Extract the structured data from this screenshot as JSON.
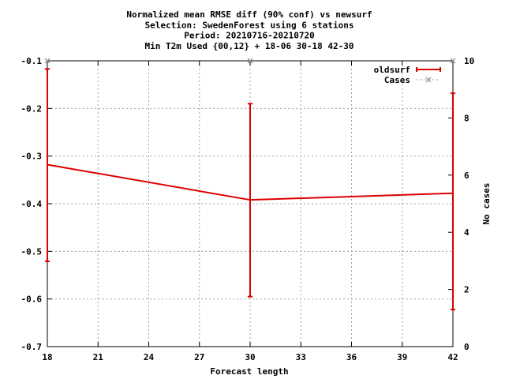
{
  "chart_data": {
    "type": "line",
    "title_lines": [
      "Normalized mean RMSE diff (90% conf) vs newsurf",
      "Selection: SwedenForest using     6 stations",
      "Period: 20210716-20210720",
      "Min T2m   Used {00,12} + 18-06 30-18 42-30"
    ],
    "xlabel": "Forecast length",
    "ylabel": "",
    "y2label": "No cases",
    "xlim": [
      18,
      42
    ],
    "ylim": [
      -0.7,
      -0.1
    ],
    "y2lim": [
      0,
      10
    ],
    "x_ticks": [
      "18",
      "21",
      "24",
      "27",
      "30",
      "33",
      "36",
      "39",
      "42"
    ],
    "y_ticks": [
      "-0.1",
      "-0.2",
      "-0.3",
      "-0.4",
      "-0.5",
      "-0.6",
      "-0.7"
    ],
    "y2_ticks": [
      "10",
      "8",
      "6",
      "4",
      "2",
      "0"
    ],
    "grid": true,
    "legend_position": "top-right",
    "series": [
      {
        "name": "oldsurf",
        "color": "#dd0000",
        "x": [
          18,
          30,
          42
        ],
        "y": [
          -0.318,
          -0.392,
          -0.378
        ],
        "err_low": [
          -0.521,
          -0.595,
          -0.622
        ],
        "err_high": [
          -0.117,
          -0.19,
          -0.168
        ]
      },
      {
        "name": "Cases",
        "color": "#999999",
        "axis": "y2",
        "x": [
          18,
          30,
          42
        ],
        "y": [
          10,
          10,
          10
        ]
      }
    ]
  }
}
